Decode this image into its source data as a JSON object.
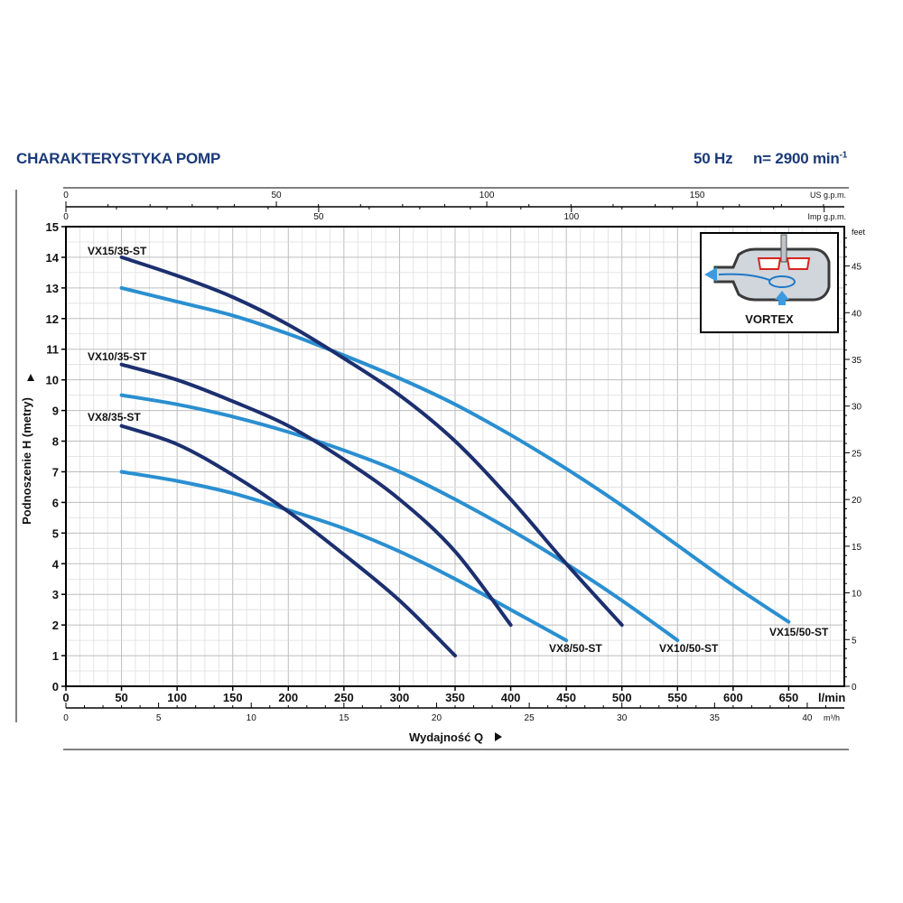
{
  "header": {
    "title": "CHARAKTERYSTYKA POMP",
    "frequency": "50 Hz",
    "speed": "n= 2900 min",
    "speed_exp": "-1"
  },
  "chart_data": {
    "type": "line",
    "xlabel": "Wydajność Q",
    "ylabel": "Podnoszenie H (metry)",
    "x_unit": "l/min",
    "xlim": [
      0,
      700
    ],
    "ylim": [
      0,
      15
    ],
    "x_ticks": [
      0,
      50,
      100,
      150,
      200,
      250,
      300,
      350,
      400,
      450,
      500,
      550,
      600,
      650
    ],
    "y_ticks": [
      0,
      1,
      2,
      3,
      4,
      5,
      6,
      7,
      8,
      9,
      10,
      11,
      12,
      13,
      14,
      15
    ],
    "grid": true,
    "secondary_axes": {
      "m3h": {
        "unit": "m³/h",
        "ticks": [
          0,
          5,
          10,
          15,
          20,
          25,
          30,
          35,
          40
        ]
      },
      "us_gpm": {
        "unit": "US g.p.m.",
        "ticks": [
          0,
          50,
          100,
          150
        ]
      },
      "imp_gpm": {
        "unit": "Imp g.p.m.",
        "ticks": [
          0,
          50,
          100
        ]
      },
      "feet": {
        "unit": "feet",
        "ticks": [
          0,
          5,
          10,
          15,
          20,
          25,
          30,
          35,
          40,
          45
        ]
      }
    },
    "series": [
      {
        "name": "VX15/35-ST",
        "color": "#1c2f6f",
        "x": [
          50,
          100,
          150,
          200,
          250,
          300,
          350,
          400,
          450,
          500
        ],
        "y": [
          14.0,
          13.4,
          12.7,
          11.8,
          10.7,
          9.5,
          8.0,
          6.1,
          4.0,
          2.0
        ]
      },
      {
        "name": "VX15/50-ST",
        "color": "#2a8fd0",
        "x": [
          50,
          100,
          150,
          200,
          250,
          300,
          350,
          400,
          450,
          500,
          550,
          600,
          650
        ],
        "y": [
          13.0,
          12.55,
          12.1,
          11.5,
          10.8,
          10.05,
          9.2,
          8.2,
          7.1,
          5.9,
          4.6,
          3.3,
          2.1
        ]
      },
      {
        "name": "VX10/35-ST",
        "color": "#1c2f6f",
        "x": [
          50,
          100,
          150,
          200,
          250,
          300,
          350,
          400
        ],
        "y": [
          10.5,
          10.0,
          9.3,
          8.5,
          7.4,
          6.1,
          4.4,
          2.0
        ]
      },
      {
        "name": "VX10/50-ST",
        "color": "#2a8fd0",
        "x": [
          50,
          100,
          150,
          200,
          250,
          300,
          350,
          400,
          450,
          500,
          550
        ],
        "y": [
          9.5,
          9.2,
          8.8,
          8.3,
          7.7,
          7.0,
          6.1,
          5.1,
          4.0,
          2.8,
          1.5
        ]
      },
      {
        "name": "VX8/35-ST",
        "color": "#1c2f6f",
        "x": [
          50,
          100,
          150,
          200,
          250,
          300,
          350
        ],
        "y": [
          8.5,
          7.9,
          6.9,
          5.7,
          4.3,
          2.8,
          1.0
        ]
      },
      {
        "name": "VX8/50-ST",
        "color": "#2a8fd0",
        "x": [
          50,
          100,
          150,
          200,
          250,
          300,
          350,
          400,
          450
        ],
        "y": [
          7.0,
          6.7,
          6.3,
          5.75,
          5.15,
          4.4,
          3.5,
          2.5,
          1.5
        ]
      }
    ],
    "inset_label": "VORTEX"
  }
}
